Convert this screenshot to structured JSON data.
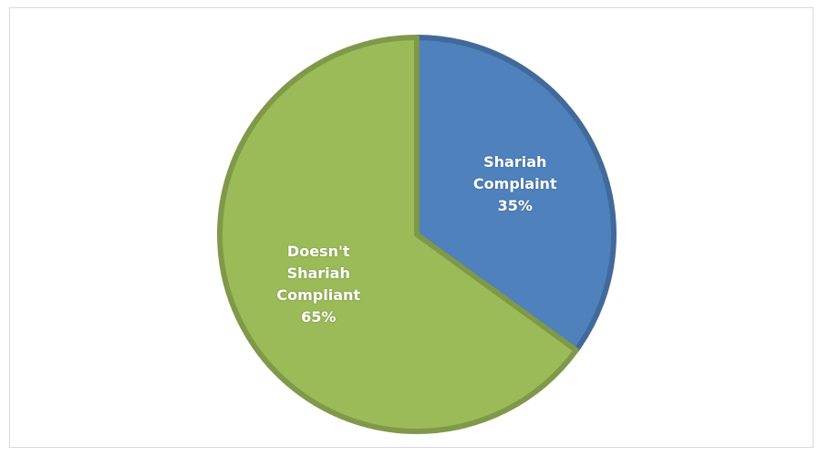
{
  "chart_data": {
    "type": "pie",
    "categories": [
      "Shariah Complaint",
      "Doesn't Shariah Compliant"
    ],
    "values": [
      35,
      65
    ],
    "value_labels": [
      "35%",
      "65%"
    ],
    "colors": [
      "#4f81bd",
      "#9bbb59"
    ]
  }
}
